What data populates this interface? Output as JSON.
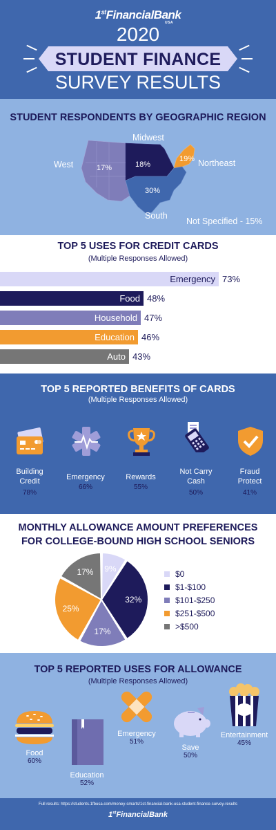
{
  "header": {
    "logo_prefix": "1",
    "logo_sup": "st",
    "logo_name": "FinancialBank",
    "logo_usa": "USA",
    "year": "2020",
    "title": "STUDENT FINANCE",
    "subtitle": "SURVEY RESULTS"
  },
  "region": {
    "title": "STUDENT RESPONDENTS BY GEOGRAPHIC REGION",
    "labels": {
      "west": "West",
      "midwest": "Midwest",
      "northeast": "Northeast",
      "south": "South",
      "not_specified": "Not Specified - 15%"
    },
    "percents": {
      "west": "17%",
      "midwest": "18%",
      "northeast": "19%",
      "south": "30%"
    },
    "colors": {
      "west": "#7f7db9",
      "midwest": "#1e1b5b",
      "northeast": "#f29b30",
      "south": "#3f67ad"
    }
  },
  "credit_uses": {
    "title": "TOP 5 USES FOR CREDIT CARDS",
    "subtitle": "(Multiple Responses Allowed)",
    "items": [
      {
        "label": "Emergency",
        "pct": "73%",
        "value": 73,
        "color": "#d9d8f7",
        "text_color": "#1d1a5a"
      },
      {
        "label": "Food",
        "pct": "48%",
        "value": 48,
        "color": "#1e1b5b",
        "text_color": "#ffffff"
      },
      {
        "label": "Household",
        "pct": "47%",
        "value": 47,
        "color": "#7f7db9",
        "text_color": "#ffffff"
      },
      {
        "label": "Education",
        "pct": "46%",
        "value": 46,
        "color": "#f29b30",
        "text_color": "#ffffff"
      },
      {
        "label": "Auto",
        "pct": "43%",
        "value": 43,
        "color": "#767676",
        "text_color": "#ffffff"
      }
    ]
  },
  "benefits": {
    "title": "TOP 5 REPORTED BENEFITS OF CARDS",
    "subtitle": "(Multiple Responses Allowed)",
    "items": [
      {
        "label_line1": "Building",
        "label_line2": "Credit",
        "pct": "78%",
        "icon": "credit-card-icon"
      },
      {
        "label_line1": "Emergency",
        "label_line2": "",
        "pct": "66%",
        "icon": "medical-star-icon"
      },
      {
        "label_line1": "Rewards",
        "label_line2": "",
        "pct": "55%",
        "icon": "trophy-icon"
      },
      {
        "label_line1": "Not Carry",
        "label_line2": "Cash",
        "pct": "50%",
        "icon": "card-reader-icon"
      },
      {
        "label_line1": "Fraud",
        "label_line2": "Protect",
        "pct": "41%",
        "icon": "shield-check-icon"
      }
    ]
  },
  "allowance": {
    "title_line1": "MONTHLY ALLOWANCE AMOUNT PREFERENCES",
    "title_line2": "FOR COLLEGE-BOUND HIGH SCHOOL SENIORS"
  },
  "chart_data": {
    "type": "pie",
    "categories": [
      "$0",
      "$1-$100",
      "$101-$250",
      "$251-$500",
      ">$500"
    ],
    "values": [
      9,
      32,
      17,
      25,
      17
    ],
    "labels": [
      "9%",
      "32%",
      "17%",
      "25%",
      "17%"
    ],
    "colors": [
      "#d9d8f7",
      "#1e1b5b",
      "#7f7db9",
      "#f29b30",
      "#767676"
    ],
    "legend": "right"
  },
  "allowance_uses": {
    "title": "TOP 5 REPORTED USES FOR ALLOWANCE",
    "subtitle": "(Multiple Responses Allowed)",
    "items": [
      {
        "label": "Food",
        "pct": "60%",
        "icon": "burger-icon"
      },
      {
        "label": "Education",
        "pct": "52%",
        "icon": "book-icon"
      },
      {
        "label": "Emergency",
        "pct": "51%",
        "icon": "bandage-icon"
      },
      {
        "label": "Save",
        "pct": "50%",
        "icon": "piggy-bank-icon"
      },
      {
        "label": "Entertainment",
        "pct": "45%",
        "icon": "popcorn-icon"
      }
    ]
  },
  "footer": {
    "note": "Full results: https://students.1fbusa.com/money-smarts/1st-financial-bank-usa-student-finance-survey-results",
    "logo_prefix": "1",
    "logo_sup": "st",
    "logo_name": "FinancialBank"
  }
}
